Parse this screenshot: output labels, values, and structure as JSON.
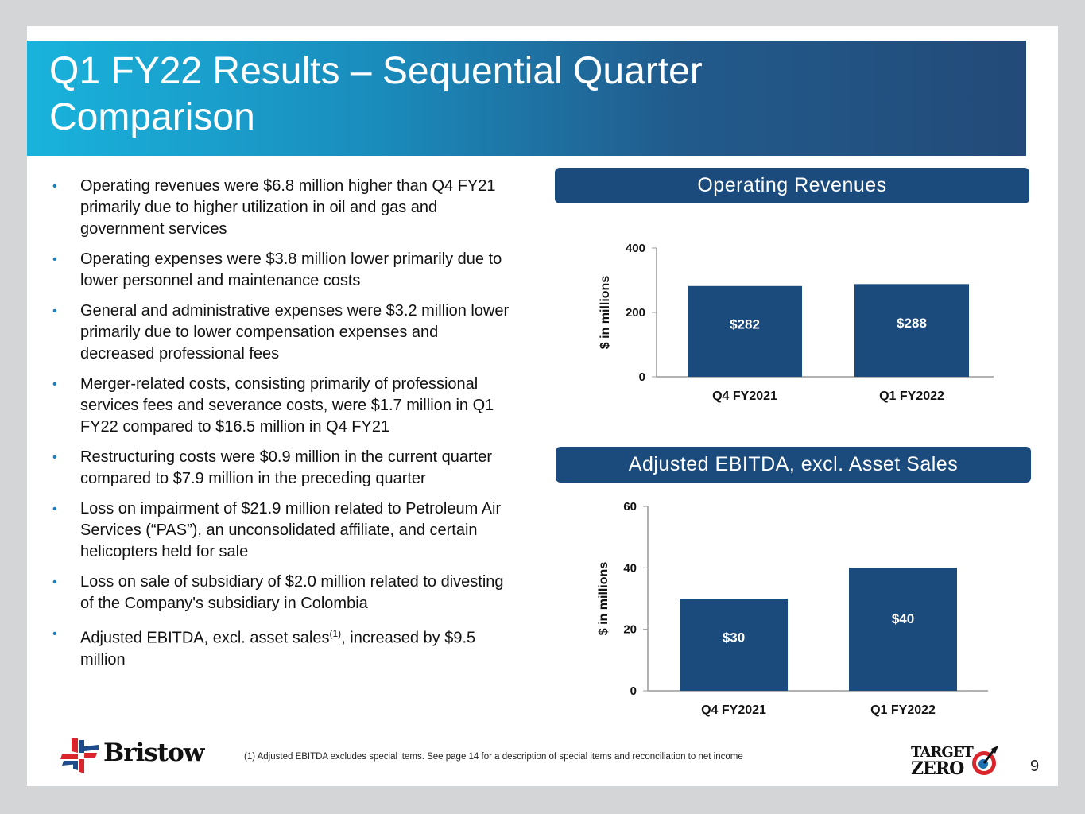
{
  "title": "Q1 FY22 Results – Sequential Quarter Comparison",
  "bullets": [
    "Operating revenues were $6.8 million higher than Q4 FY21 primarily due to higher utilization in oil and gas and government services",
    "Operating expenses were $3.8 million lower primarily due to lower personnel and maintenance costs",
    "General and administrative expenses were $3.2 million lower primarily due to lower compensation expenses and decreased professional fees",
    "Merger-related costs, consisting primarily of professional services fees and severance costs, were $1.7 million in Q1 FY22 compared to $16.5 million in Q4 FY21",
    "Restructuring costs were $0.9 million in the current quarter compared to $7.9 million in the preceding quarter",
    "Loss on impairment of $21.9 million related to Petroleum Air Services (“PAS”), an unconsolidated affiliate, and certain helicopters held for sale",
    "Loss on sale of subsidiary of $2.0 million related to divesting of the Company's subsidiary in Colombia"
  ],
  "last_bullet": {
    "pre": "Adjusted EBITDA, excl. asset sales",
    "sup": "(1)",
    "post": ", increased by $9.5 million"
  },
  "footnote": "(1)  Adjusted EBITDA excludes special items. See page 14 for a description of special items and reconciliation to net income",
  "page_number": "9",
  "logos": {
    "bristow": "Bristow",
    "target_zero": [
      "TARGET",
      "ZERO"
    ]
  },
  "colors": {
    "bar": "#1b4a7c",
    "bullet": "#1a7fc0"
  },
  "chart_data": [
    {
      "type": "bar",
      "title": "Operating Revenues",
      "categories": [
        "Q4 FY2021",
        "Q1 FY2022"
      ],
      "values": [
        282,
        288
      ],
      "labels": [
        "$282",
        "$288"
      ],
      "ylabel": "$ in millions",
      "ylim": [
        0,
        400
      ],
      "yticks": [
        "0",
        "200",
        "400"
      ]
    },
    {
      "type": "bar",
      "title": "Adjusted EBITDA, excl. Asset Sales",
      "categories": [
        "Q4 FY2021",
        "Q1 FY2022"
      ],
      "values": [
        30,
        40
      ],
      "labels": [
        "$30",
        "$40"
      ],
      "ylabel": "$ in millions",
      "ylim": [
        0,
        60
      ],
      "yticks": [
        "0",
        "20",
        "40",
        "60"
      ]
    }
  ]
}
